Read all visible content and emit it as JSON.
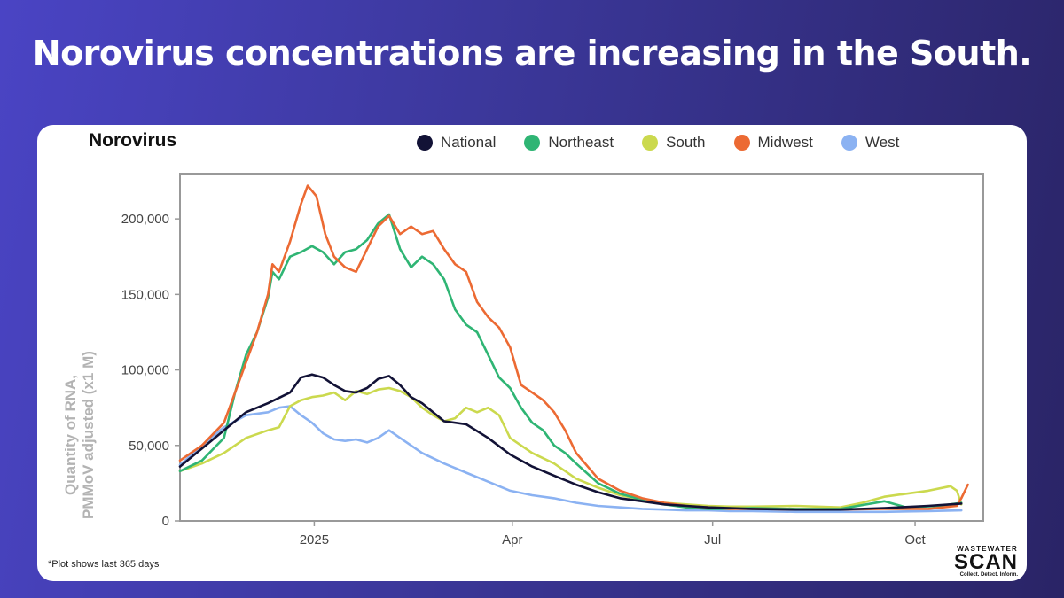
{
  "headline": "Norovirus concentrations are increasing in the South.",
  "footnote": "*Plot shows last 365 days",
  "logo": {
    "line1": "WASTEWATER",
    "line2": "SCAN",
    "line3": "Collect. Detect. Inform."
  },
  "colors": {
    "National": "#121236",
    "Northeast": "#2fb574",
    "South": "#cbd94e",
    "Midwest": "#ec6a33",
    "West": "#8bb2f2",
    "axis": "#999999",
    "tick_text": "#444444"
  },
  "chart_data": {
    "type": "line",
    "title": "Norovirus",
    "ylabel_line1": "Quantity of RNA,",
    "ylabel_line2": "PMMoV adjusted (x1 M)",
    "xlabel": "",
    "x_unit": "days since 1 Nov 2024",
    "xlim": [
      0,
      365
    ],
    "ylim": [
      0,
      230000
    ],
    "y_ticks": [
      {
        "value": 0,
        "label": "0"
      },
      {
        "value": 50000,
        "label": "50,000"
      },
      {
        "value": 100000,
        "label": "100,000"
      },
      {
        "value": 150000,
        "label": "150,000"
      },
      {
        "value": 200000,
        "label": "200,000"
      }
    ],
    "x_ticks": [
      {
        "value": 61,
        "label": "2025"
      },
      {
        "value": 151,
        "label": "Apr"
      },
      {
        "value": 242,
        "label": "Jul"
      },
      {
        "value": 334,
        "label": "Oct"
      }
    ],
    "legend": [
      "National",
      "Northeast",
      "South",
      "Midwest",
      "West"
    ],
    "series": [
      {
        "name": "National",
        "x": [
          0,
          10,
          20,
          30,
          40,
          50,
          55,
          60,
          65,
          70,
          75,
          80,
          85,
          90,
          95,
          100,
          105,
          110,
          120,
          130,
          140,
          150,
          160,
          170,
          180,
          190,
          200,
          210,
          220,
          230,
          240,
          250,
          260,
          280,
          300,
          320,
          340,
          355
        ],
        "y": [
          36000,
          48000,
          60000,
          72000,
          78000,
          85000,
          95000,
          97000,
          95000,
          90000,
          86000,
          85000,
          88000,
          94000,
          96000,
          90000,
          82000,
          78000,
          66000,
          64000,
          55000,
          44000,
          36000,
          30000,
          24000,
          19000,
          15000,
          13000,
          11000,
          10000,
          9000,
          8500,
          8000,
          7500,
          7500,
          8500,
          10000,
          11500
        ]
      },
      {
        "name": "Northeast",
        "x": [
          0,
          10,
          20,
          25,
          30,
          35,
          40,
          42,
          45,
          50,
          55,
          60,
          65,
          70,
          75,
          80,
          85,
          90,
          95,
          100,
          105,
          110,
          115,
          120,
          125,
          130,
          135,
          140,
          145,
          150,
          155,
          160,
          165,
          170,
          175,
          180,
          190,
          200,
          210,
          220,
          230,
          240,
          250,
          260,
          280,
          300,
          320,
          330,
          345,
          355
        ],
        "y": [
          33000,
          40000,
          55000,
          85000,
          110000,
          125000,
          148000,
          165000,
          160000,
          175000,
          178000,
          182000,
          178000,
          170000,
          178000,
          180000,
          186000,
          197000,
          203000,
          180000,
          168000,
          175000,
          170000,
          160000,
          140000,
          130000,
          125000,
          110000,
          95000,
          88000,
          75000,
          65000,
          60000,
          50000,
          45000,
          38000,
          25000,
          18000,
          14000,
          11000,
          9000,
          8000,
          8000,
          8500,
          8000,
          8000,
          13000,
          9000,
          10000,
          12000
        ]
      },
      {
        "name": "South",
        "x": [
          0,
          10,
          20,
          30,
          40,
          45,
          50,
          55,
          60,
          65,
          70,
          75,
          80,
          85,
          90,
          95,
          100,
          105,
          110,
          115,
          120,
          125,
          130,
          135,
          140,
          145,
          150,
          155,
          160,
          170,
          180,
          190,
          200,
          210,
          220,
          230,
          240,
          250,
          260,
          280,
          300,
          310,
          320,
          330,
          340,
          350,
          353,
          355
        ],
        "y": [
          33000,
          38000,
          45000,
          55000,
          60000,
          62000,
          76000,
          80000,
          82000,
          83000,
          85000,
          80000,
          86000,
          84000,
          87000,
          88000,
          86000,
          82000,
          75000,
          70000,
          66000,
          68000,
          75000,
          72000,
          75000,
          70000,
          55000,
          50000,
          45000,
          38000,
          28000,
          22000,
          17000,
          14000,
          12000,
          11000,
          10000,
          9500,
          9500,
          10000,
          9000,
          12000,
          16000,
          18000,
          20000,
          23000,
          20000,
          11000
        ]
      },
      {
        "name": "Midwest",
        "x": [
          0,
          10,
          20,
          25,
          30,
          35,
          40,
          42,
          45,
          50,
          55,
          58,
          62,
          66,
          70,
          75,
          80,
          85,
          90,
          95,
          100,
          105,
          110,
          115,
          120,
          125,
          130,
          135,
          140,
          145,
          150,
          155,
          160,
          165,
          170,
          175,
          180,
          190,
          200,
          210,
          220,
          230,
          240,
          250,
          260,
          280,
          300,
          320,
          340,
          353,
          355,
          358
        ],
        "y": [
          40000,
          50000,
          65000,
          85000,
          105000,
          125000,
          150000,
          170000,
          165000,
          185000,
          210000,
          222000,
          215000,
          190000,
          175000,
          168000,
          165000,
          180000,
          195000,
          202000,
          190000,
          195000,
          190000,
          192000,
          180000,
          170000,
          165000,
          145000,
          135000,
          128000,
          115000,
          90000,
          85000,
          80000,
          72000,
          60000,
          45000,
          28000,
          20000,
          15000,
          12000,
          10000,
          9000,
          8000,
          8000,
          7500,
          7500,
          8000,
          8000,
          10000,
          15000,
          24000
        ]
      },
      {
        "name": "West",
        "x": [
          0,
          10,
          20,
          30,
          40,
          45,
          50,
          55,
          60,
          65,
          70,
          75,
          80,
          85,
          90,
          95,
          100,
          110,
          120,
          130,
          140,
          150,
          160,
          170,
          180,
          190,
          200,
          210,
          220,
          230,
          240,
          250,
          260,
          280,
          300,
          320,
          340,
          355
        ],
        "y": [
          37000,
          50000,
          62000,
          70000,
          72000,
          75000,
          76000,
          70000,
          65000,
          58000,
          54000,
          53000,
          54000,
          52000,
          55000,
          60000,
          55000,
          45000,
          38000,
          32000,
          26000,
          20000,
          17000,
          15000,
          12000,
          10000,
          9000,
          8000,
          7500,
          7000,
          7000,
          6500,
          6500,
          6000,
          6000,
          6000,
          6500,
          7000
        ]
      }
    ]
  }
}
